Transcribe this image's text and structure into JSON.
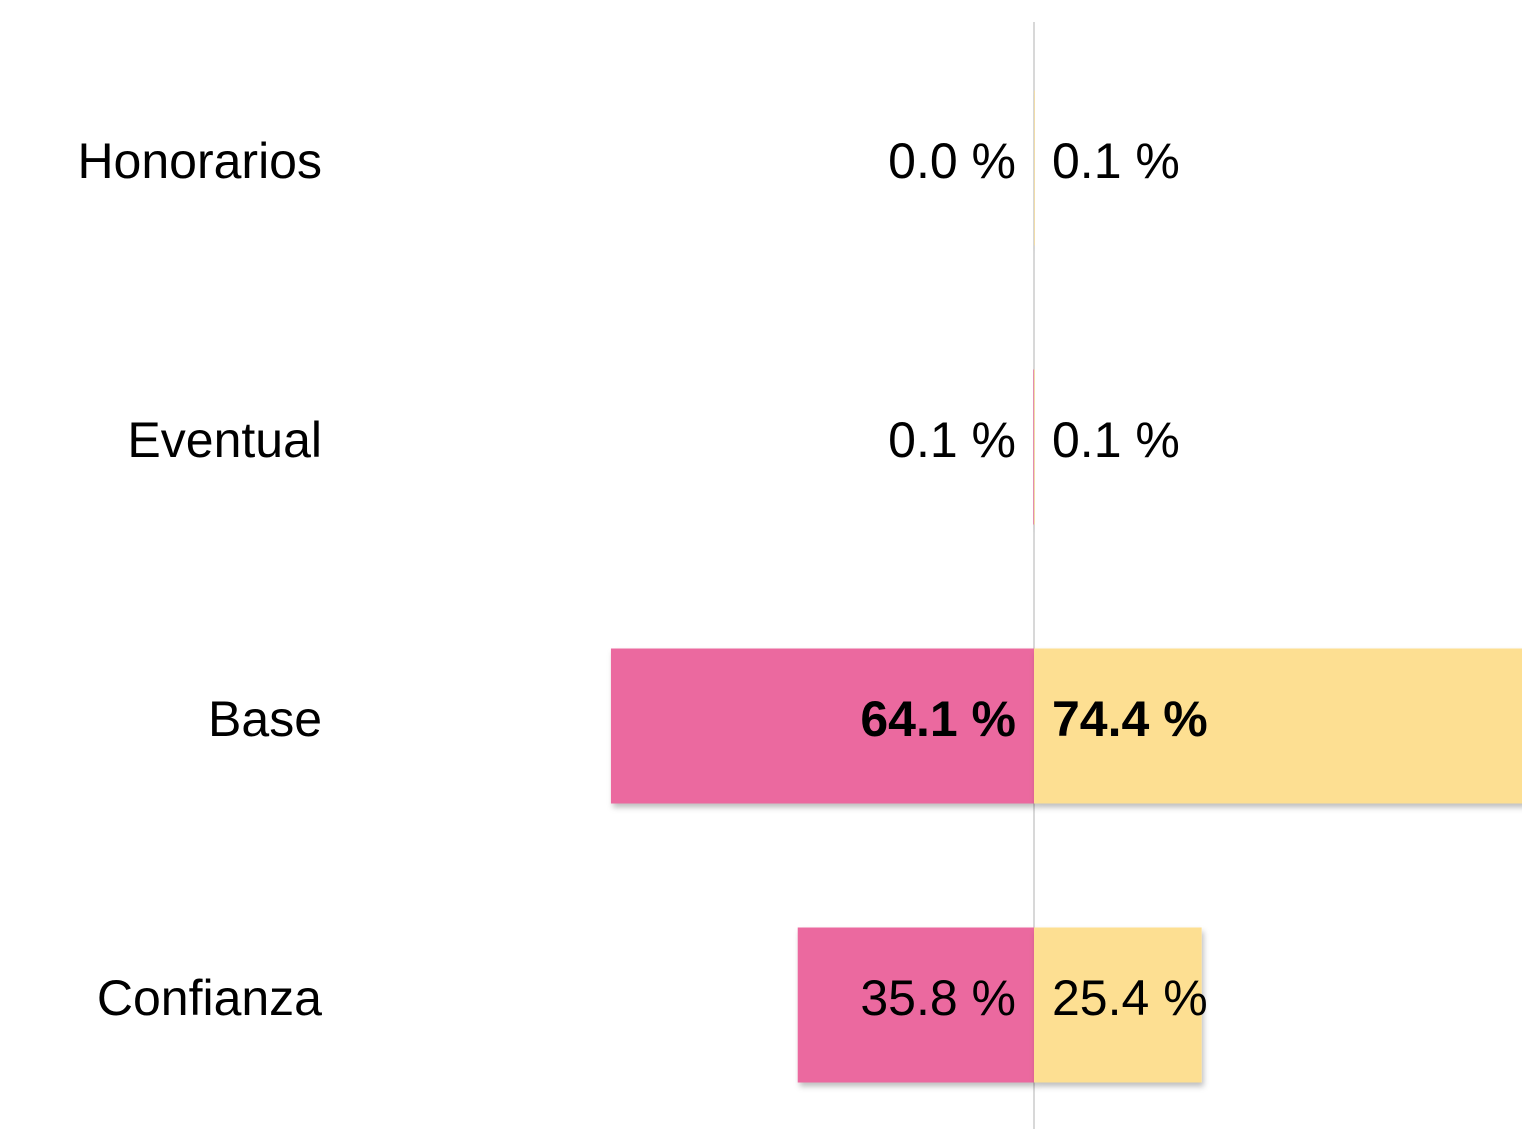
{
  "chart_data": {
    "type": "diverging-bar",
    "categories": [
      "Honorarios",
      "Eventual",
      "Base",
      "Confianza"
    ],
    "series": [
      {
        "color": "#eb699f",
        "values": [
          0.0,
          0.1,
          64.1,
          35.8
        ],
        "value_labels": [
          "0.0 %",
          "0.1 %",
          "64.1 %",
          "35.8 %"
        ]
      },
      {
        "color": "#fddf92",
        "values": [
          0.1,
          0.1,
          74.4,
          25.4
        ],
        "value_labels": [
          "0.1 %",
          "0.1 %",
          "74.4 %",
          "25.4 %"
        ]
      }
    ]
  }
}
